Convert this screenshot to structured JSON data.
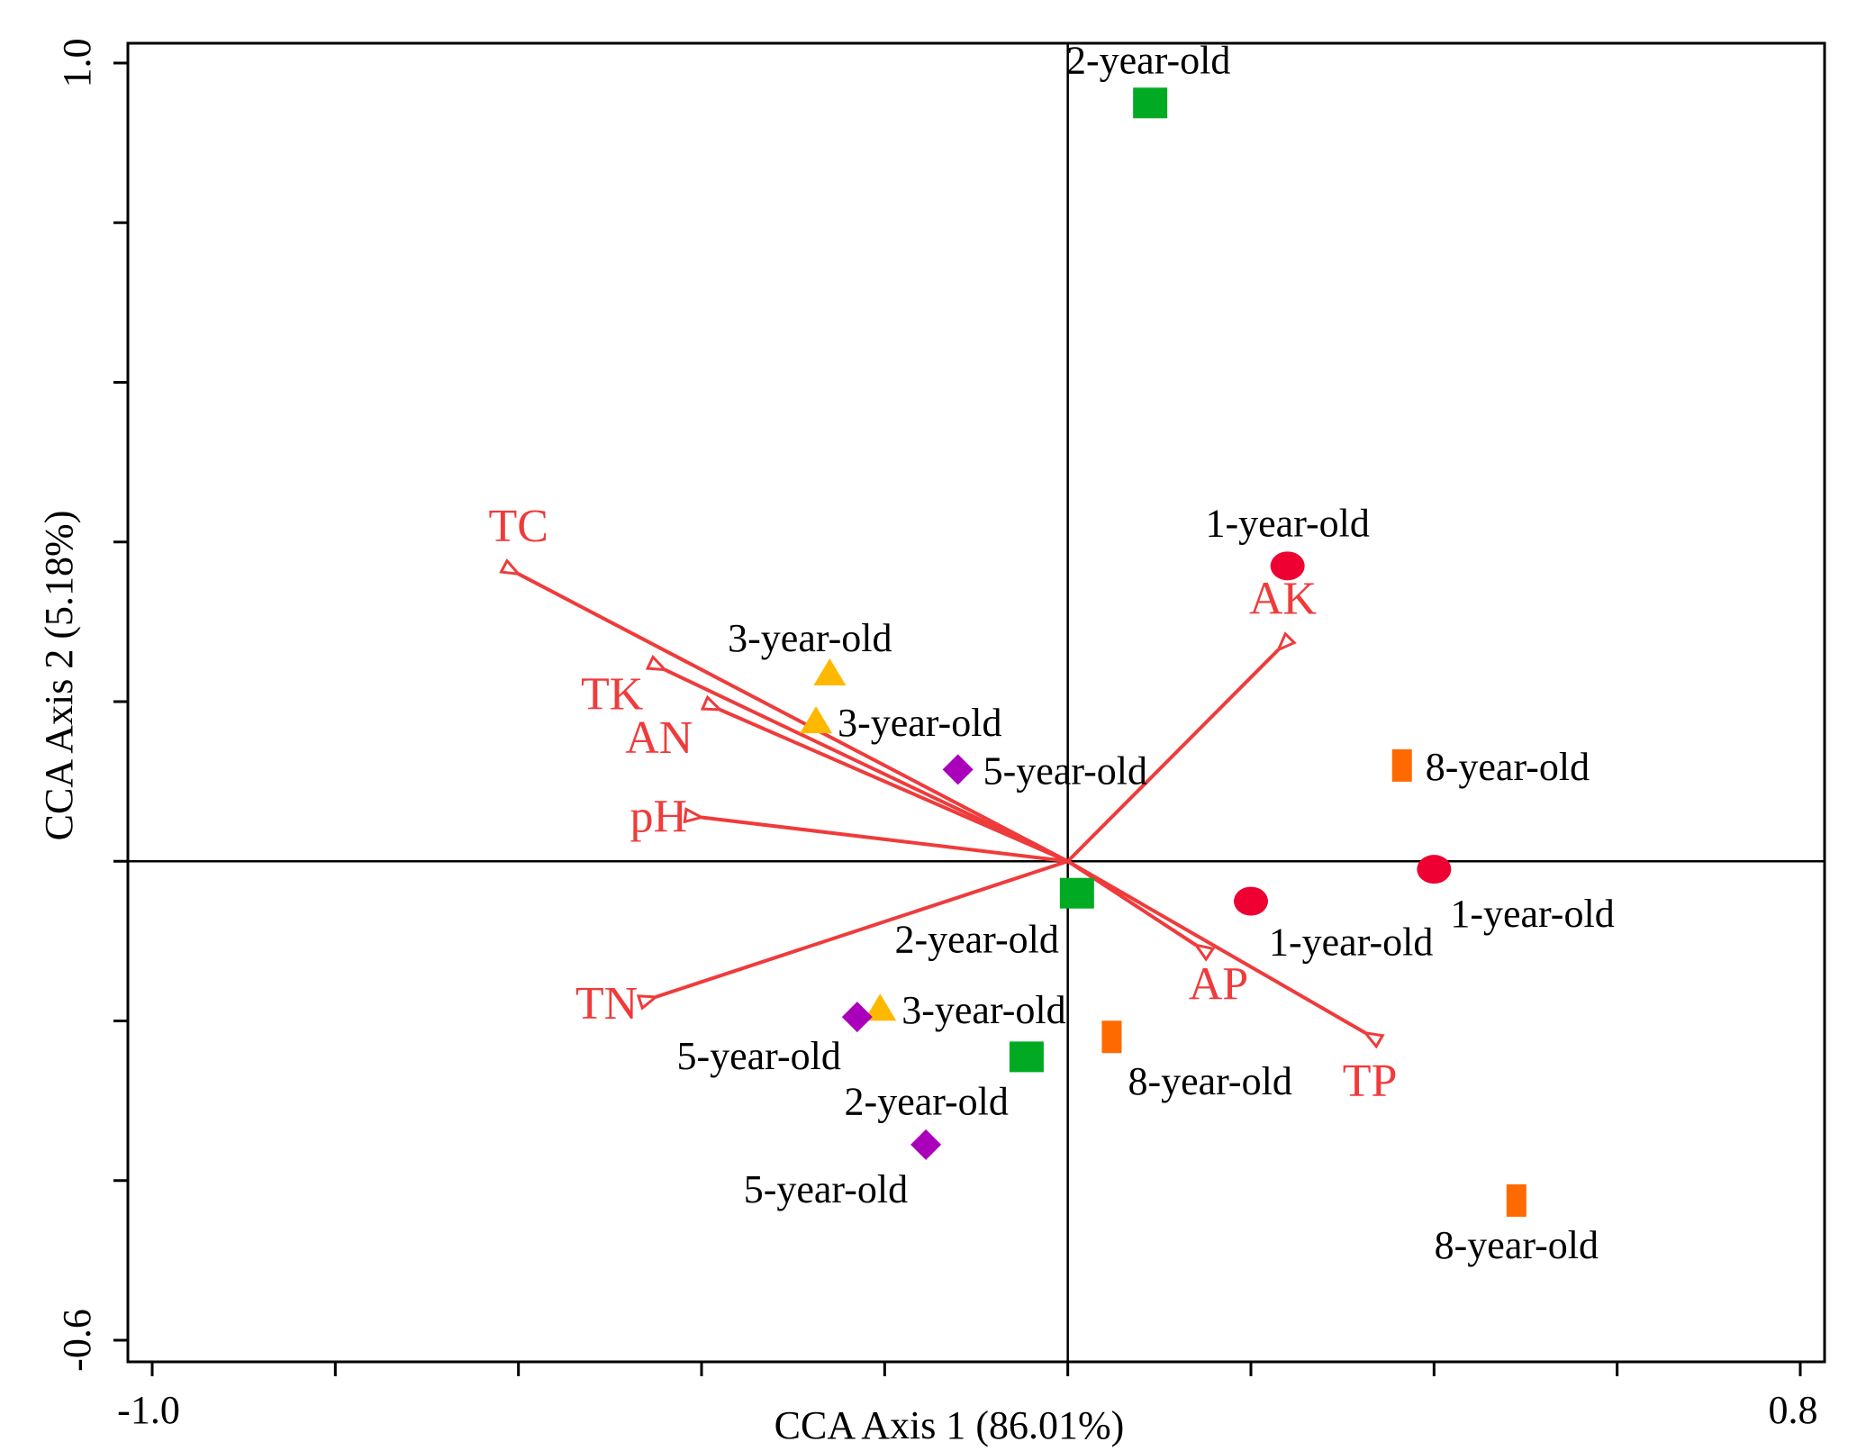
{
  "chart_data": {
    "type": "scatter",
    "subtype": "cca-biplot",
    "xlabel": "CCA Axis 1 (86.01%)",
    "ylabel": "CCA Axis 2 (5.18%)",
    "xlim": [
      -1.0,
      0.8
    ],
    "ylim": [
      -0.6,
      1.0
    ],
    "x_tick_labels": [
      "-1.0",
      "0.8"
    ],
    "y_tick_labels": [
      "1.0",
      "-0.6"
    ],
    "env_color": "#ef3b3b",
    "env_vectors": [
      {
        "name": "TC",
        "x": -0.6,
        "y": 0.36
      },
      {
        "name": "TK",
        "x": -0.44,
        "y": 0.24
      },
      {
        "name": "AN",
        "x": -0.38,
        "y": 0.19
      },
      {
        "name": "pH",
        "x": -0.4,
        "y": 0.055
      },
      {
        "name": "TN",
        "x": -0.45,
        "y": -0.17
      },
      {
        "name": "AK",
        "x": 0.23,
        "y": 0.265
      },
      {
        "name": "AP",
        "x": 0.14,
        "y": -0.105
      },
      {
        "name": "TP",
        "x": 0.325,
        "y": -0.215
      }
    ],
    "series": [
      {
        "name": "1-year-old",
        "marker": "circle",
        "color": "#ee0033",
        "points": [
          {
            "x": 0.24,
            "y": 0.37,
            "label": "1-year-old"
          },
          {
            "x": 0.2,
            "y": -0.05,
            "label": "1-year-old"
          },
          {
            "x": 0.4,
            "y": -0.01,
            "label": "1-year-old"
          }
        ]
      },
      {
        "name": "2-year-old",
        "marker": "square",
        "color": "#00aa22",
        "points": [
          {
            "x": 0.09,
            "y": 0.95,
            "label": "2-year-old"
          },
          {
            "x": 0.01,
            "y": -0.04,
            "label": "2-year-old"
          },
          {
            "x": -0.045,
            "y": -0.245,
            "label": "2-year-old"
          }
        ]
      },
      {
        "name": "3-year-old",
        "marker": "triangle",
        "color": "#ffb800",
        "points": [
          {
            "x": -0.26,
            "y": 0.235,
            "label": "3-year-old"
          },
          {
            "x": -0.275,
            "y": 0.175,
            "label": "3-year-old"
          },
          {
            "x": -0.205,
            "y": -0.185,
            "label": "3-year-old"
          }
        ]
      },
      {
        "name": "5-year-old",
        "marker": "diamond",
        "color": "#aa00bb",
        "points": [
          {
            "x": -0.12,
            "y": 0.115,
            "label": "5-year-old"
          },
          {
            "x": -0.23,
            "y": -0.195,
            "label": "5-year-old"
          },
          {
            "x": -0.155,
            "y": -0.355,
            "label": "5-year-old"
          }
        ]
      },
      {
        "name": "8-year-old",
        "marker": "rect",
        "color": "#ff6a00",
        "points": [
          {
            "x": 0.365,
            "y": 0.12,
            "label": "8-year-old"
          },
          {
            "x": 0.048,
            "y": -0.22,
            "label": "8-year-old"
          },
          {
            "x": 0.49,
            "y": -0.425,
            "label": "8-year-old"
          }
        ]
      }
    ]
  }
}
